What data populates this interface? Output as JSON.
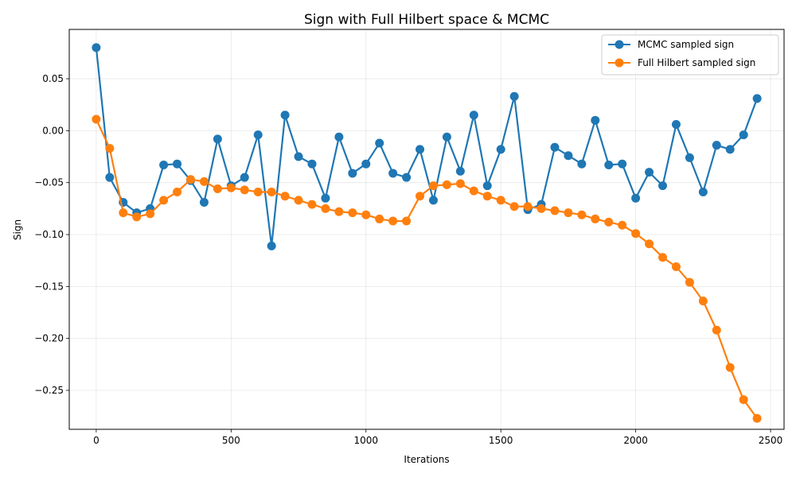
{
  "chart_data": {
    "type": "line",
    "title": "Sign with Full Hilbert space & MCMC",
    "xlabel": "Iterations",
    "ylabel": "Sign",
    "xlim": [
      -100,
      2550
    ],
    "ylim": [
      -0.2875,
      0.0975
    ],
    "xticks": [
      0,
      500,
      1000,
      1500,
      2000,
      2500
    ],
    "xtick_labels": [
      "0",
      "500",
      "1000",
      "1500",
      "2000",
      "2500"
    ],
    "yticks": [
      -0.25,
      -0.2,
      -0.15,
      -0.1,
      -0.05,
      0.0,
      0.05
    ],
    "ytick_labels": [
      "−0.25",
      "−0.20",
      "−0.15",
      "−0.10",
      "−0.05",
      "0.00",
      "0.05"
    ],
    "grid": true,
    "legend_position": "top-right",
    "x": [
      0,
      50,
      100,
      150,
      200,
      250,
      300,
      350,
      400,
      450,
      500,
      550,
      600,
      650,
      700,
      750,
      800,
      850,
      900,
      950,
      1000,
      1050,
      1100,
      1150,
      1200,
      1250,
      1300,
      1350,
      1400,
      1450,
      1500,
      1550,
      1600,
      1650,
      1700,
      1750,
      1800,
      1850,
      1900,
      1950,
      2000,
      2050,
      2100,
      2150,
      2200,
      2250,
      2300,
      2350,
      2400,
      2450
    ],
    "series": [
      {
        "name": "MCMC sampled sign",
        "color": "#1f77b4",
        "values": [
          0.08,
          -0.045,
          -0.069,
          -0.079,
          -0.075,
          -0.033,
          -0.032,
          -0.048,
          -0.069,
          -0.008,
          -0.053,
          -0.045,
          -0.004,
          -0.111,
          0.015,
          -0.025,
          -0.032,
          -0.065,
          -0.006,
          -0.041,
          -0.032,
          -0.012,
          -0.041,
          -0.045,
          -0.018,
          -0.067,
          -0.006,
          -0.039,
          0.015,
          -0.053,
          -0.018,
          0.033,
          -0.076,
          -0.071,
          -0.016,
          -0.024,
          -0.032,
          0.01,
          -0.033,
          -0.032,
          -0.065,
          -0.04,
          -0.053,
          0.006,
          -0.026,
          -0.059,
          -0.014,
          -0.018,
          -0.004,
          0.031
        ]
      },
      {
        "name": "Full Hilbert sampled sign",
        "color": "#ff7f0e",
        "values": [
          0.011,
          -0.017,
          -0.079,
          -0.083,
          -0.08,
          -0.067,
          -0.059,
          -0.047,
          -0.049,
          -0.056,
          -0.055,
          -0.057,
          -0.059,
          -0.059,
          -0.063,
          -0.067,
          -0.071,
          -0.075,
          -0.078,
          -0.079,
          -0.081,
          -0.085,
          -0.087,
          -0.087,
          -0.063,
          -0.053,
          -0.052,
          -0.051,
          -0.058,
          -0.063,
          -0.067,
          -0.073,
          -0.073,
          -0.075,
          -0.077,
          -0.079,
          -0.081,
          -0.085,
          -0.088,
          -0.091,
          -0.099,
          -0.109,
          -0.122,
          -0.131,
          -0.146,
          -0.164,
          -0.192,
          -0.228,
          -0.259,
          -0.277
        ]
      }
    ]
  }
}
